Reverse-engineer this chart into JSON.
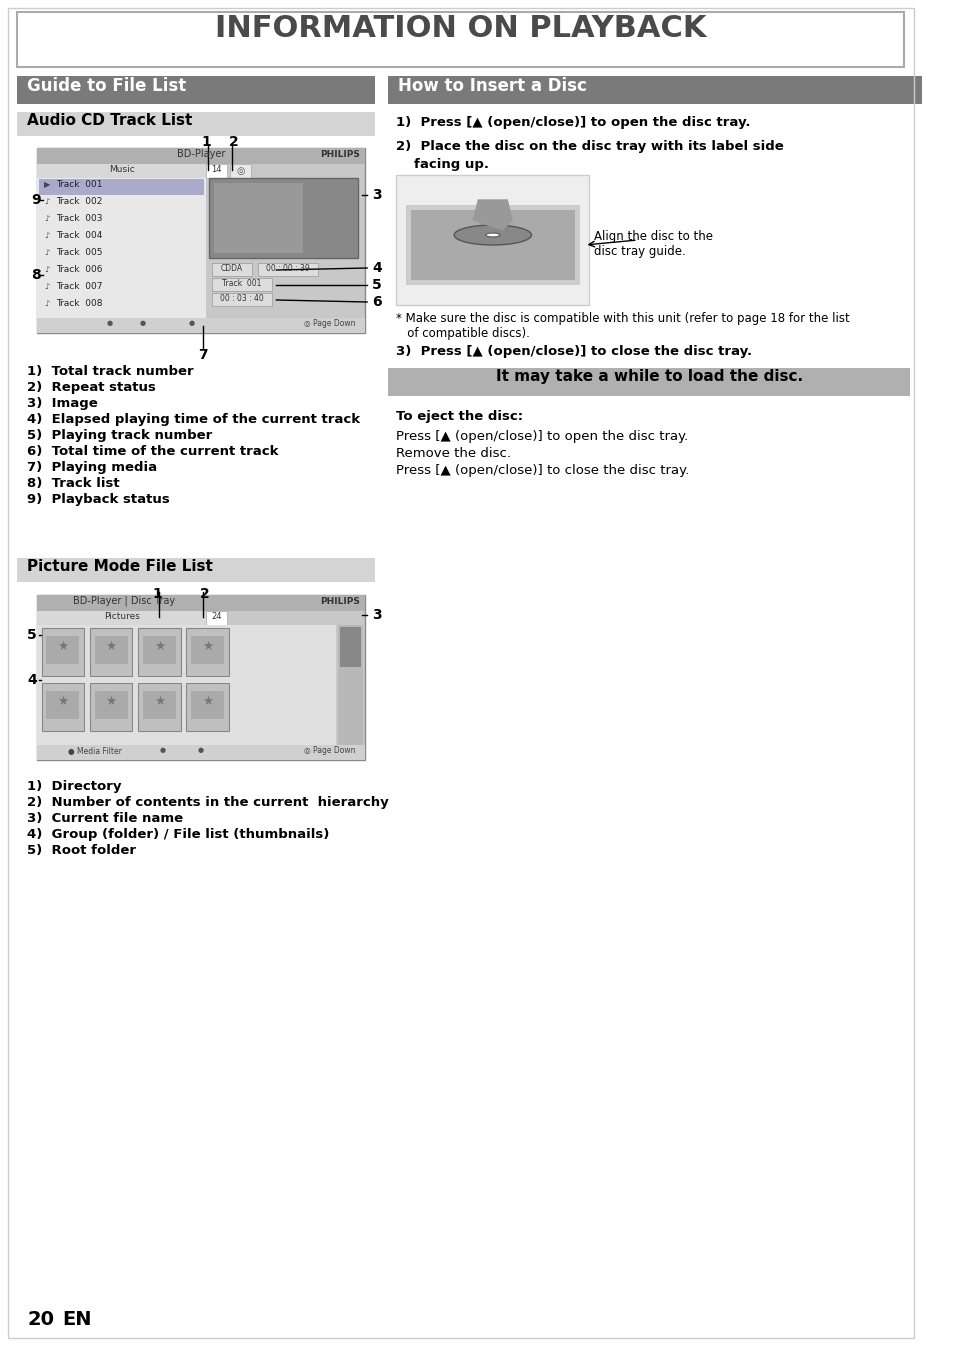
{
  "title": "INFORMATION ON PLAYBACK",
  "bg_color": "#ffffff",
  "title_bg": "#ffffff",
  "title_color": "#4a4a4a",
  "section1_title": "Guide to File List",
  "section1_bg": "#7a7a7a",
  "section1_color": "#ffffff",
  "section2_title": "How to Insert a Disc",
  "section2_bg": "#7a7a7a",
  "section2_color": "#ffffff",
  "subsection1_title": "Audio CD Track List",
  "subsection1_bg": "#d0d0d0",
  "subsection1_color": "#000000",
  "subsection2_title": "Picture Mode File List",
  "subsection2_bg": "#d0d0d0",
  "subsection2_color": "#000000",
  "highlight_box": "#9a9a9a",
  "highlight_text": "It may take a while to load the disc.",
  "audio_cd_items": [
    "1)  Total track number",
    "2)  Repeat status",
    "3)  Image",
    "4)  Elapsed playing time of the current track",
    "5)  Playing track number",
    "6)  Total time of the current track",
    "7)  Playing media",
    "8)  Track list",
    "9)  Playback status"
  ],
  "picture_mode_items": [
    "1)  Directory",
    "2)  Number of contents in the current  hierarchy",
    "3)  Current file name",
    "4)  Group (folder) / File list (thumbnails)",
    "5)  Root folder"
  ],
  "insert_disc_steps": [
    "1)  Press [▲ (open/close)] to open the disc tray.",
    "2)  Place the disc on the disc tray with its label side\n     facing up.",
    "3)  Press [▲ (open/close)] to close the disc tray."
  ],
  "note_text": "* Make sure the disc is compatible with this unit (refer to page 18 for the list\n   of compatible discs).",
  "eject_title": "To eject the disc:",
  "eject_lines": [
    "Press [▲ (open/close)] to open the disc tray.",
    "Remove the disc.",
    "Press [▲ (open/close)] to close the disc tray."
  ],
  "page_number": "20",
  "page_lang": "EN",
  "align_text": "Align the disc to the\ndisc tray guide."
}
